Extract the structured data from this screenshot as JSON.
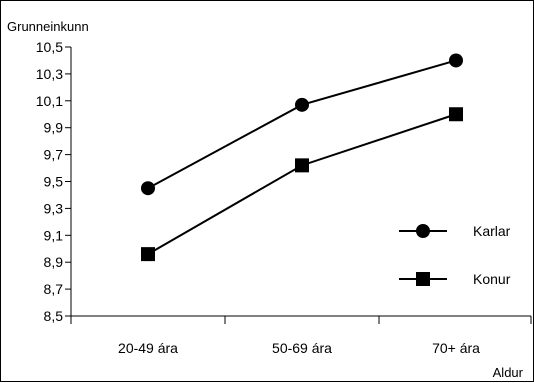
{
  "chart_data": {
    "type": "line",
    "ylabel": "Grunneinkunn",
    "xlabel": "Aldur",
    "categories": [
      "20-49 ára",
      "50-69 ára",
      "70+ ára"
    ],
    "ylim": [
      8.5,
      10.5
    ],
    "yticks": [
      "8,5",
      "8,7",
      "8,9",
      "9,1",
      "9,3",
      "9,5",
      "9,7",
      "9,9",
      "10,1",
      "10,3",
      "10,5"
    ],
    "series": [
      {
        "name": "Karlar",
        "marker": "circle",
        "values": [
          9.45,
          10.07,
          10.4
        ]
      },
      {
        "name": "Konur",
        "marker": "square",
        "values": [
          8.96,
          9.62,
          10.0
        ]
      }
    ],
    "legend_position": "right",
    "grid": false,
    "colors": {
      "line": "#000000",
      "marker": "#000000"
    }
  }
}
